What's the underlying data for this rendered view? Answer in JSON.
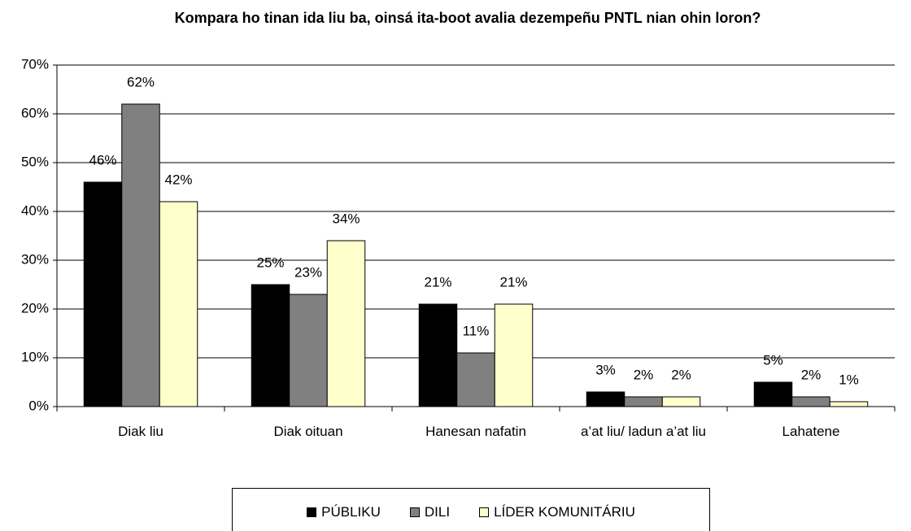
{
  "chart_data": {
    "type": "bar",
    "title": "Kompara ho tinan ida liu ba, oinsá ita-boot avalia dezempeñu PNTL nian ohin loron?",
    "categories": [
      "Diak liu",
      "Diak oituan",
      "Hanesan nafatin",
      "a’at liu/ ladun a’at liu",
      "Lahatene"
    ],
    "series": [
      {
        "name": "PÚBLIKU",
        "color": "#000000",
        "values": [
          46,
          25,
          21,
          3,
          5
        ],
        "value_labels": [
          "46%",
          "25%",
          "21%",
          "3%",
          "5%"
        ]
      },
      {
        "name": "DILI",
        "color": "#808080",
        "values": [
          62,
          23,
          11,
          2,
          2
        ],
        "value_labels": [
          "62%",
          "23%",
          "11%",
          "2%",
          "2%"
        ]
      },
      {
        "name": "LÍDER KOMUNITÁRIU",
        "color": "#ffffcc",
        "values": [
          42,
          34,
          21,
          2,
          1
        ],
        "value_labels": [
          "42%",
          "34%",
          "21%",
          "2%",
          "1%"
        ]
      }
    ],
    "ylim": [
      0,
      70
    ],
    "yticks": [
      {
        "value": 0,
        "label": "0%"
      },
      {
        "value": 10,
        "label": "10%"
      },
      {
        "value": 20,
        "label": "20%"
      },
      {
        "value": 30,
        "label": "30%"
      },
      {
        "value": 40,
        "label": "40%"
      },
      {
        "value": 50,
        "label": "50%"
      },
      {
        "value": 60,
        "label": "60%"
      },
      {
        "value": 70,
        "label": "70%"
      }
    ],
    "grid": true,
    "legend": "bottom"
  }
}
